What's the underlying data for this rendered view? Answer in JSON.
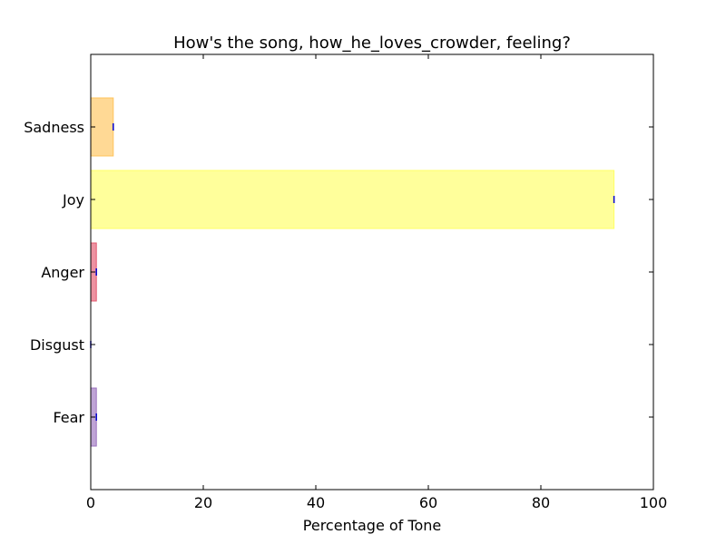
{
  "chart_data": {
    "type": "bar",
    "orientation": "horizontal",
    "title": "How's the song, how_he_loves_crowder, feeling?",
    "xlabel": "Percentage of Tone",
    "ylabel": "",
    "xlim": [
      0,
      100
    ],
    "x_ticks": [
      "0",
      "20",
      "40",
      "60",
      "80",
      "100"
    ],
    "categories": [
      "Fear",
      "Disgust",
      "Anger",
      "Joy",
      "Sadness"
    ],
    "values": [
      1,
      0,
      1,
      93,
      4
    ],
    "colors": [
      "#9b72bf",
      "#2e8b2e",
      "#e3586e",
      "#ffff66",
      "#ffc45c"
    ],
    "error_bar_color": "#0000cc",
    "grid": false
  }
}
